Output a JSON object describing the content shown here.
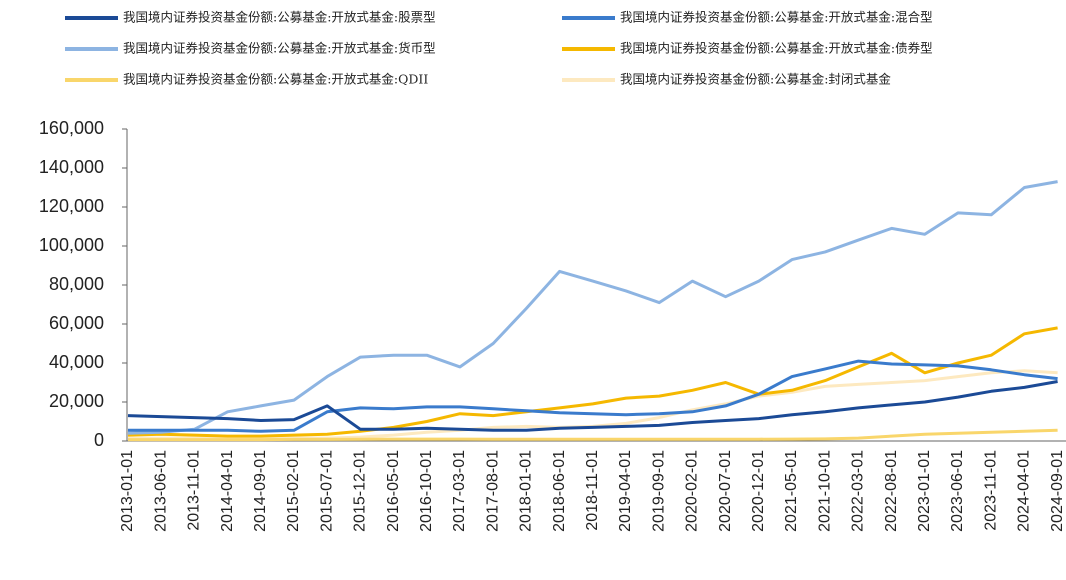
{
  "chart_data": {
    "type": "line",
    "categories": [
      "2013-01-01",
      "2013-06-01",
      "2013-11-01",
      "2014-04-01",
      "2014-09-01",
      "2015-02-01",
      "2015-07-01",
      "2015-12-01",
      "2016-05-01",
      "2016-10-01",
      "2017-03-01",
      "2017-08-01",
      "2018-01-01",
      "2018-06-01",
      "2018-11-01",
      "2019-04-01",
      "2019-09-01",
      "2020-02-01",
      "2020-07-01",
      "2020-12-01",
      "2021-05-01",
      "2021-10-01",
      "2022-03-01",
      "2022-08-01",
      "2023-01-01",
      "2023-06-01",
      "2023-11-01",
      "2024-04-01",
      "2024-09-01"
    ],
    "series": [
      {
        "name": "我国境内证券投资基金份额:公募基金:开放式基金:股票型",
        "color": "#1b4a96",
        "values": [
          13000,
          12500,
          12000,
          11500,
          10500,
          11000,
          18000,
          6000,
          6000,
          6500,
          6000,
          5500,
          5500,
          6500,
          7000,
          7500,
          8000,
          9500,
          10500,
          11500,
          13500,
          15000,
          17000,
          18500,
          20000,
          22500,
          25500,
          27500,
          30500
        ]
      },
      {
        "name": "我国境内证券投资基金份额:公募基金:开放式基金:混合型",
        "color": "#3a7bcc",
        "values": [
          5500,
          5500,
          5500,
          5500,
          5000,
          5500,
          15000,
          17000,
          16500,
          17500,
          17500,
          16500,
          15500,
          14500,
          14000,
          13500,
          14000,
          15000,
          18000,
          24000,
          33000,
          37000,
          41000,
          39500,
          39000,
          38500,
          36500,
          34000,
          32000
        ]
      },
      {
        "name": "我国境内证券投资基金份额:公募基金:开放式基金:货币型",
        "color": "#8db4e2",
        "values": [
          4000,
          4500,
          6000,
          15000,
          18000,
          21000,
          33000,
          43000,
          44000,
          44000,
          38000,
          50000,
          68000,
          87000,
          82000,
          77000,
          71000,
          82000,
          74000,
          82000,
          93000,
          97000,
          103000,
          109000,
          106000,
          117000,
          116000,
          130000,
          133000
        ]
      },
      {
        "name": "我国境内证券投资基金份额:公募基金:开放式基金:债券型",
        "color": "#f5b800",
        "values": [
          3000,
          3500,
          3000,
          2500,
          2500,
          3000,
          3500,
          5000,
          7000,
          10000,
          14000,
          13000,
          15000,
          17000,
          19000,
          22000,
          23000,
          26000,
          30000,
          24000,
          26000,
          31000,
          38000,
          45000,
          35000,
          40000,
          44000,
          55000,
          58000
        ]
      },
      {
        "name": "我国境内证券投资基金份额:公募基金:开放式基金:QDII",
        "color": "#f9d66b",
        "values": [
          700,
          700,
          700,
          700,
          700,
          800,
          800,
          900,
          1000,
          1000,
          1000,
          900,
          900,
          900,
          900,
          900,
          900,
          900,
          900,
          900,
          1000,
          1100,
          1500,
          2500,
          3500,
          4000,
          4500,
          5000,
          5500
        ]
      },
      {
        "name": "我国境内证券投资基金份额:公募基金:封闭式基金",
        "color": "#fde9c0",
        "values": [
          1500,
          1500,
          1500,
          1500,
          1500,
          1500,
          1500,
          2000,
          3000,
          4500,
          5500,
          7000,
          7500,
          7000,
          7500,
          9000,
          12000,
          16000,
          19000,
          23000,
          25000,
          28000,
          29000,
          30000,
          31000,
          33000,
          35000,
          36000,
          35000
        ]
      }
    ],
    "ylim": [
      0,
      160000
    ],
    "yticks": [
      0,
      {
        "value": 20000,
        "label": "20,000"
      },
      {
        "value": 40000,
        "label": "40,000"
      },
      {
        "value": 60000,
        "label": "60,000"
      },
      {
        "value": 80000,
        "label": "80,000"
      },
      {
        "value": 100000,
        "label": "100,000"
      },
      {
        "value": 120000,
        "label": "120,000"
      },
      {
        "value": 140000,
        "label": "140,000"
      },
      {
        "value": 160000,
        "label": "160,000"
      }
    ],
    "legend": "top",
    "grid": false
  }
}
